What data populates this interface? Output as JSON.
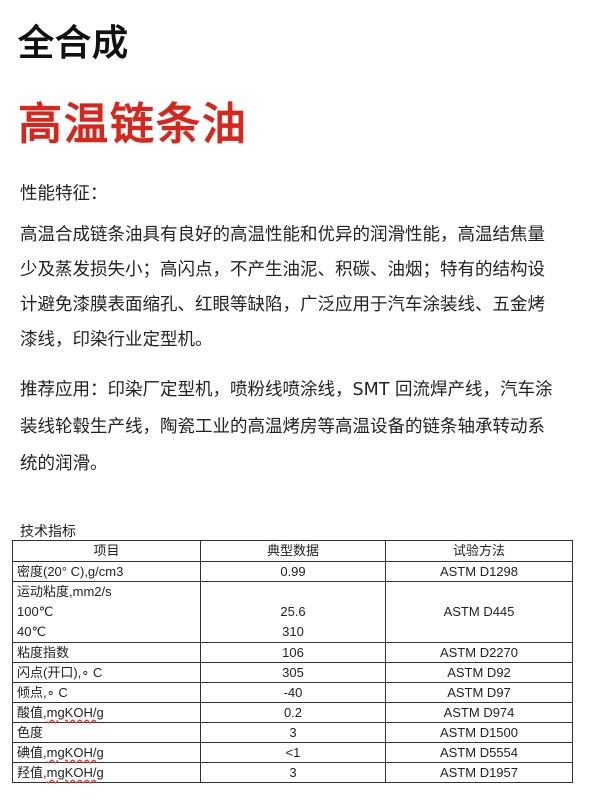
{
  "title": "全合成",
  "subtitle": "高温链条油",
  "features": {
    "heading": "性能特征：",
    "lines": [
      "高温合成链条油具有良好的高温性能和优异的润滑性能，高温结焦量",
      "少及蒸发损失小；高闪点，不产生油泥、积碳、油烟；特有的结构设",
      "计避免漆膜表面缩孔、红眼等缺陷，广泛应用于汽车涂装线、五金烤",
      "漆线，印染行业定型机。"
    ]
  },
  "applications": {
    "lines": [
      "推荐应用：印染厂定型机，喷粉线喷涂线，SMT 回流焊产线，汽车涂",
      "装线轮毂生产线，陶瓷工业的高温烤房等高温设备的链条轴承转动系",
      "统的润滑。"
    ]
  },
  "specs": {
    "title": "技术指标",
    "headers": [
      "项目",
      "典型数据",
      "试验方法"
    ],
    "rows": [
      {
        "item": "密度(20° C),g/cm3",
        "value": "0.99",
        "method": "ASTM D1298"
      },
      {
        "item": "运动粘度,mm2/s",
        "sub1": "100℃",
        "sub2": "40℃",
        "value1": "25.6",
        "value2": "310",
        "method": "ASTM D445"
      },
      {
        "item": "粘度指数",
        "value": "106",
        "method": "ASTM D2270"
      },
      {
        "item": "闪点(开口),∘ C",
        "value": "305",
        "method": "ASTM D92"
      },
      {
        "item": "倾点,∘ C",
        "value": "-40",
        "method": "ASTM D97"
      },
      {
        "item_cn": "酸值,",
        "item_unit": "mgKOH/g",
        "value": "0.2",
        "method": "ASTM D974"
      },
      {
        "item": "色度",
        "value": "3",
        "method": "ASTM D1500"
      },
      {
        "item_cn": "碘值,",
        "item_unit": "mgKOH/g",
        "value": "<1",
        "method": "ASTM D5554"
      },
      {
        "item_cn": "羟值,",
        "item_unit": "mgKOH/g",
        "value": "3",
        "method": "ASTM D1957"
      }
    ]
  },
  "colors": {
    "subtitle": "#d9261c",
    "text": "#222222"
  }
}
